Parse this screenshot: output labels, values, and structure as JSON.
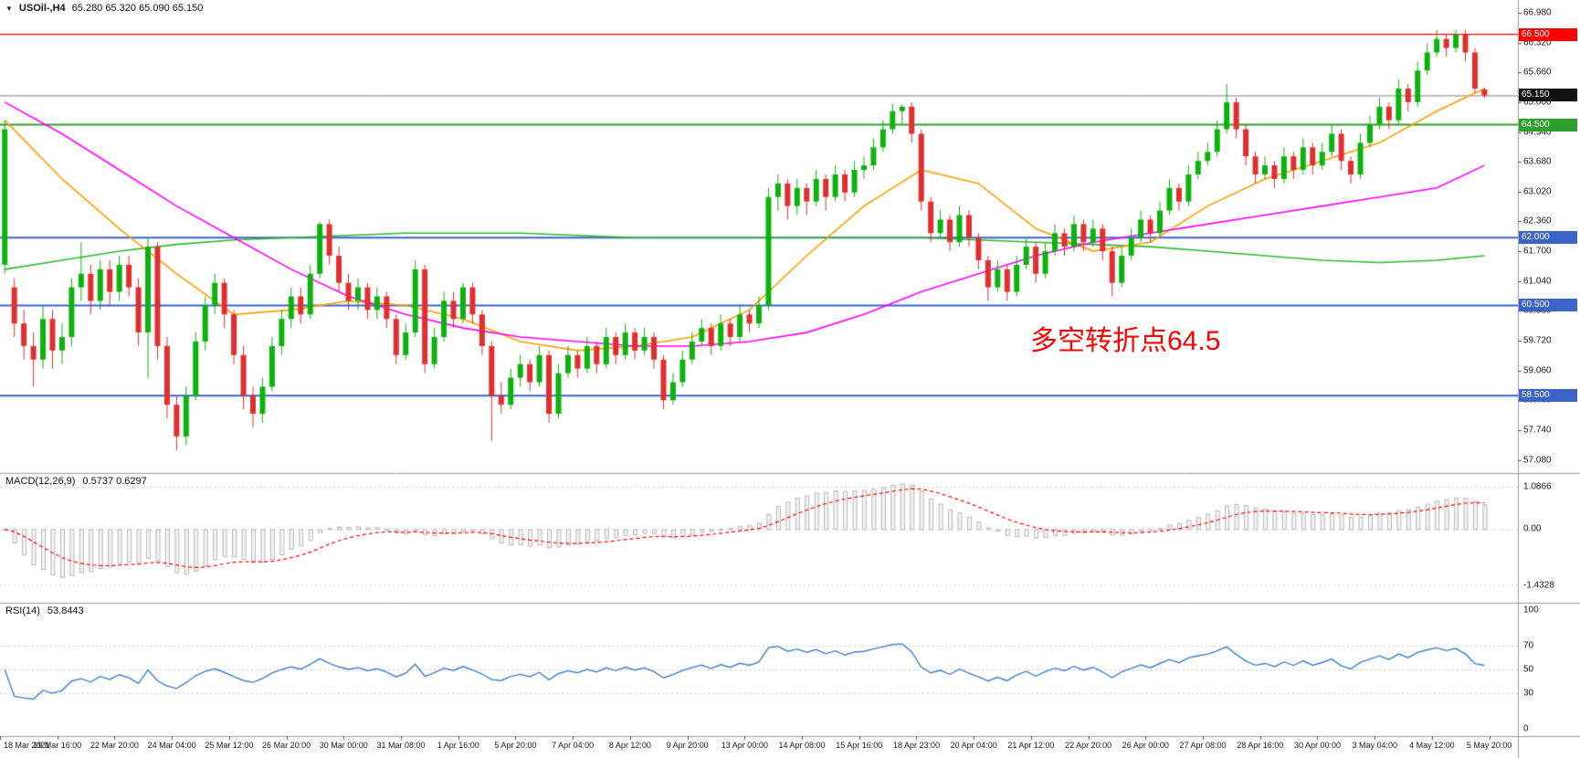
{
  "header": {
    "dropdown_glyph": "▼",
    "symbol_period": "USOil-,H4",
    "ohlc": "65.280 65.320 65.090 65.150"
  },
  "annotation": {
    "text": "多空转折点64.5",
    "color": "#ff0000"
  },
  "price_scale": {
    "labels": [
      "66.980",
      "66.320",
      "65.660",
      "65.000",
      "64.340",
      "63.680",
      "63.020",
      "62.360",
      "61.700",
      "61.040",
      "60.380",
      "59.720",
      "59.060",
      "58.400",
      "57.740",
      "57.080"
    ]
  },
  "levels": [
    {
      "label": "66.500",
      "price": 66.5,
      "color": "#ff0000",
      "width": 1.4
    },
    {
      "label": "64.500",
      "price": 64.5,
      "color": "#2e9e2e",
      "width": 2
    },
    {
      "label": "62.000",
      "price": 62.0,
      "color": "#3c64c8",
      "width": 2
    },
    {
      "label": "60.500",
      "price": 60.5,
      "color": "#3c64c8",
      "width": 2
    },
    {
      "label": "58.500",
      "price": 58.5,
      "color": "#3c64c8",
      "width": 2
    }
  ],
  "current_price": {
    "label": "65.150",
    "value": 65.15,
    "line_color": "#808080",
    "badge_color": "#111111"
  },
  "indicators": {
    "macd": {
      "label": "MACD(12,26,9)",
      "values": "0.5737 0.6297",
      "scale": [
        "1.0866",
        "0.00",
        "-1.4328"
      ],
      "scale_values": [
        1.0866,
        0,
        -1.4328
      ],
      "histogram_fill": "#f4f4f4",
      "histogram_stroke": "#b8b8b8",
      "signal_color": "#ff0000"
    },
    "rsi": {
      "label": "RSI(14)",
      "value": "53.8443",
      "scale": [
        "100",
        "70",
        "50",
        "30",
        "0"
      ],
      "scale_values": [
        100,
        70,
        50,
        30,
        0
      ],
      "levels": [
        30,
        50,
        70
      ],
      "line_color": "#3f7fca"
    }
  },
  "time_axis": [
    "18 Mar 2021",
    "19 Mar 16:00",
    "22 Mar 20:00",
    "24 Mar 04:00",
    "25 Mar 12:00",
    "26 Mar 20:00",
    "30 Mar 00:00",
    "31 Mar 08:00",
    "1 Apr 16:00",
    "5 Apr 20:00",
    "7 Apr 04:00",
    "8 Apr 12:00",
    "9 Apr 20:00",
    "13 Apr 00:00",
    "14 Apr 08:00",
    "15 Apr 16:00",
    "18 Apr 23:00",
    "20 Apr 04:00",
    "21 Apr 12:00",
    "22 Apr 20:00",
    "26 Apr 00:00",
    "27 Apr 08:00",
    "28 Apr 16:00",
    "30 Apr 00:00",
    "3 May 04:00",
    "4 May 12:00",
    "5 May 20:00"
  ],
  "chart_data": {
    "type": "candlestick",
    "symbol": "USOil-",
    "timeframe": "H4",
    "title": "USOil-,H4 65.280 65.320 65.090 65.150",
    "price_range": [
      56.95,
      67.1
    ],
    "x_tick_step": 6,
    "bull_color": "#0db30d",
    "bear_color": "#e12f2f",
    "ohlc": [
      [
        61.4,
        64.6,
        61.2,
        64.4
      ],
      [
        60.9,
        61.1,
        59.8,
        60.1
      ],
      [
        60.1,
        60.4,
        59.3,
        59.6
      ],
      [
        59.6,
        59.9,
        58.7,
        59.3
      ],
      [
        59.3,
        60.5,
        59.1,
        60.2
      ],
      [
        60.2,
        60.4,
        59.1,
        59.5
      ],
      [
        59.5,
        60.1,
        59.2,
        59.8
      ],
      [
        59.8,
        61.1,
        59.6,
        60.9
      ],
      [
        60.9,
        61.9,
        60.6,
        61.2
      ],
      [
        61.2,
        61.4,
        60.3,
        60.6
      ],
      [
        60.6,
        61.5,
        60.4,
        61.3
      ],
      [
        61.3,
        61.5,
        60.5,
        60.8
      ],
      [
        60.8,
        61.6,
        60.6,
        61.4
      ],
      [
        61.4,
        61.6,
        60.7,
        60.9
      ],
      [
        60.9,
        61.1,
        59.6,
        59.9
      ],
      [
        59.9,
        62.0,
        58.9,
        61.8
      ],
      [
        61.8,
        61.9,
        59.3,
        59.6
      ],
      [
        59.6,
        59.8,
        58.0,
        58.3
      ],
      [
        58.3,
        58.5,
        57.3,
        57.6
      ],
      [
        57.6,
        58.7,
        57.4,
        58.5
      ],
      [
        58.5,
        59.9,
        58.4,
        59.7
      ],
      [
        59.7,
        60.7,
        59.5,
        60.5
      ],
      [
        60.5,
        61.2,
        60.3,
        61.0
      ],
      [
        61.0,
        61.1,
        60.0,
        60.3
      ],
      [
        60.3,
        60.4,
        59.2,
        59.4
      ],
      [
        59.4,
        59.6,
        58.2,
        58.5
      ],
      [
        58.5,
        58.7,
        57.8,
        58.1
      ],
      [
        58.1,
        58.9,
        57.9,
        58.7
      ],
      [
        58.7,
        59.8,
        58.6,
        59.6
      ],
      [
        59.6,
        60.4,
        59.4,
        60.2
      ],
      [
        60.2,
        60.9,
        60.0,
        60.7
      ],
      [
        60.7,
        60.9,
        60.1,
        60.3
      ],
      [
        60.3,
        61.4,
        60.2,
        61.2
      ],
      [
        61.2,
        62.35,
        61.1,
        62.3
      ],
      [
        62.3,
        62.4,
        61.4,
        61.6
      ],
      [
        61.6,
        61.8,
        60.8,
        61.0
      ],
      [
        61.0,
        61.2,
        60.4,
        60.6
      ],
      [
        60.6,
        61.1,
        60.4,
        60.9
      ],
      [
        60.9,
        61.0,
        60.2,
        60.4
      ],
      [
        60.4,
        60.9,
        60.2,
        60.7
      ],
      [
        60.7,
        60.8,
        60.0,
        60.2
      ],
      [
        60.2,
        60.3,
        59.2,
        59.4
      ],
      [
        59.4,
        60.1,
        59.3,
        59.9
      ],
      [
        59.9,
        61.5,
        59.8,
        61.3
      ],
      [
        61.3,
        61.4,
        59.0,
        59.2
      ],
      [
        59.2,
        60.0,
        59.1,
        59.8
      ],
      [
        59.8,
        60.8,
        59.7,
        60.6
      ],
      [
        60.6,
        60.8,
        60.0,
        60.2
      ],
      [
        60.2,
        61.0,
        60.1,
        60.9
      ],
      [
        60.9,
        61.0,
        60.1,
        60.3
      ],
      [
        60.3,
        60.4,
        59.4,
        59.6
      ],
      [
        59.6,
        59.7,
        57.5,
        58.5
      ],
      [
        58.5,
        58.8,
        58.1,
        58.3
      ],
      [
        58.3,
        59.1,
        58.2,
        58.9
      ],
      [
        58.9,
        59.4,
        58.7,
        59.2
      ],
      [
        59.2,
        59.3,
        58.6,
        58.8
      ],
      [
        58.8,
        59.6,
        58.7,
        59.4
      ],
      [
        59.4,
        59.5,
        57.9,
        58.1
      ],
      [
        58.1,
        59.2,
        58.0,
        59.0
      ],
      [
        59.0,
        59.6,
        58.9,
        59.4
      ],
      [
        59.4,
        59.5,
        58.9,
        59.1
      ],
      [
        59.1,
        59.8,
        59.0,
        59.6
      ],
      [
        59.6,
        59.7,
        59.0,
        59.2
      ],
      [
        59.2,
        60.0,
        59.1,
        59.8
      ],
      [
        59.8,
        59.9,
        59.2,
        59.4
      ],
      [
        59.4,
        60.1,
        59.3,
        59.9
      ],
      [
        59.9,
        60.0,
        59.3,
        59.5
      ],
      [
        59.5,
        60.0,
        59.4,
        59.8
      ],
      [
        59.8,
        59.9,
        59.1,
        59.3
      ],
      [
        59.3,
        59.4,
        58.2,
        58.4
      ],
      [
        58.4,
        59.0,
        58.3,
        58.8
      ],
      [
        58.8,
        59.5,
        58.7,
        59.3
      ],
      [
        59.3,
        59.9,
        59.2,
        59.7
      ],
      [
        59.7,
        60.2,
        59.6,
        60.0
      ],
      [
        60.0,
        60.1,
        59.4,
        59.6
      ],
      [
        59.6,
        60.3,
        59.5,
        60.1
      ],
      [
        60.1,
        60.2,
        59.6,
        59.8
      ],
      [
        59.8,
        60.5,
        59.7,
        60.3
      ],
      [
        60.3,
        60.4,
        59.9,
        60.1
      ],
      [
        60.1,
        60.7,
        60.0,
        60.5
      ],
      [
        60.5,
        63.1,
        60.4,
        62.9
      ],
      [
        62.9,
        63.4,
        62.6,
        63.2
      ],
      [
        63.2,
        63.3,
        62.4,
        62.7
      ],
      [
        62.7,
        63.3,
        62.5,
        63.1
      ],
      [
        63.1,
        63.2,
        62.5,
        62.8
      ],
      [
        62.8,
        63.5,
        62.7,
        63.3
      ],
      [
        63.3,
        63.4,
        62.6,
        62.9
      ],
      [
        62.9,
        63.6,
        62.8,
        63.4
      ],
      [
        63.4,
        63.5,
        62.8,
        63.0
      ],
      [
        63.0,
        63.7,
        62.9,
        63.5
      ],
      [
        63.5,
        63.8,
        63.3,
        63.6
      ],
      [
        63.6,
        64.2,
        63.5,
        64.0
      ],
      [
        64.0,
        64.6,
        63.9,
        64.4
      ],
      [
        64.4,
        64.97,
        64.3,
        64.8
      ],
      [
        64.8,
        64.95,
        64.5,
        64.9
      ],
      [
        64.9,
        65.0,
        64.1,
        64.3
      ],
      [
        64.3,
        64.4,
        62.6,
        62.8
      ],
      [
        62.8,
        62.9,
        61.9,
        62.1
      ],
      [
        62.1,
        62.6,
        62.0,
        62.4
      ],
      [
        62.4,
        62.5,
        61.7,
        61.9
      ],
      [
        61.9,
        62.7,
        61.8,
        62.5
      ],
      [
        62.5,
        62.6,
        61.8,
        62.0
      ],
      [
        62.0,
        62.1,
        61.3,
        61.5
      ],
      [
        61.5,
        61.6,
        60.6,
        60.9
      ],
      [
        60.9,
        61.5,
        60.8,
        61.3
      ],
      [
        61.3,
        61.4,
        60.6,
        60.8
      ],
      [
        60.8,
        61.6,
        60.7,
        61.4
      ],
      [
        61.4,
        62.0,
        61.3,
        61.8
      ],
      [
        61.8,
        61.9,
        61.0,
        61.2
      ],
      [
        61.2,
        61.9,
        61.1,
        61.7
      ],
      [
        61.7,
        62.3,
        61.6,
        62.1
      ],
      [
        62.1,
        62.2,
        61.6,
        61.8
      ],
      [
        61.8,
        62.5,
        61.7,
        62.3
      ],
      [
        62.3,
        62.4,
        61.7,
        61.9
      ],
      [
        61.9,
        62.4,
        61.8,
        62.2
      ],
      [
        62.2,
        62.3,
        61.5,
        61.7
      ],
      [
        61.7,
        61.8,
        60.7,
        61.0
      ],
      [
        61.0,
        61.8,
        60.9,
        61.6
      ],
      [
        61.6,
        62.2,
        61.5,
        62.0
      ],
      [
        62.0,
        62.6,
        61.9,
        62.4
      ],
      [
        62.4,
        62.5,
        61.9,
        62.1
      ],
      [
        62.1,
        62.8,
        62.0,
        62.6
      ],
      [
        62.6,
        63.3,
        62.5,
        63.1
      ],
      [
        63.1,
        63.2,
        62.6,
        62.8
      ],
      [
        62.8,
        63.6,
        62.7,
        63.4
      ],
      [
        63.4,
        63.9,
        63.3,
        63.7
      ],
      [
        63.7,
        64.1,
        63.6,
        63.9
      ],
      [
        63.9,
        64.6,
        63.8,
        64.4
      ],
      [
        64.4,
        65.4,
        64.3,
        65.0
      ],
      [
        65.0,
        65.1,
        64.2,
        64.4
      ],
      [
        64.4,
        64.5,
        63.6,
        63.8
      ],
      [
        63.8,
        63.9,
        63.2,
        63.4
      ],
      [
        63.4,
        63.8,
        63.3,
        63.6
      ],
      [
        63.6,
        63.7,
        63.1,
        63.3
      ],
      [
        63.3,
        64.0,
        63.2,
        63.8
      ],
      [
        63.8,
        63.9,
        63.3,
        63.5
      ],
      [
        63.5,
        64.2,
        63.4,
        64.0
      ],
      [
        64.0,
        64.1,
        63.4,
        63.6
      ],
      [
        63.6,
        64.1,
        63.5,
        63.9
      ],
      [
        63.9,
        64.5,
        63.8,
        64.3
      ],
      [
        64.3,
        64.4,
        63.5,
        63.7
      ],
      [
        63.7,
        63.8,
        63.2,
        63.4
      ],
      [
        63.4,
        64.3,
        63.3,
        64.1
      ],
      [
        64.1,
        64.7,
        64.0,
        64.5
      ],
      [
        64.5,
        65.1,
        64.4,
        64.9
      ],
      [
        64.9,
        65.0,
        64.4,
        64.6
      ],
      [
        64.6,
        65.5,
        64.5,
        65.3
      ],
      [
        65.3,
        65.4,
        64.8,
        65.0
      ],
      [
        65.0,
        65.9,
        64.9,
        65.7
      ],
      [
        65.7,
        66.3,
        65.6,
        66.1
      ],
      [
        66.1,
        66.6,
        66.0,
        66.4
      ],
      [
        66.4,
        66.5,
        66.0,
        66.2
      ],
      [
        66.2,
        66.6,
        66.1,
        66.5
      ],
      [
        66.5,
        66.6,
        65.9,
        66.1
      ],
      [
        66.1,
        66.2,
        65.2,
        65.3
      ],
      [
        65.28,
        65.32,
        65.09,
        65.15
      ]
    ],
    "overlays": [
      {
        "name": "ma-slow-green",
        "color": "#2db82d",
        "values": [
          61.3,
          61.5,
          61.7,
          61.85,
          61.95,
          62.0,
          62.05,
          62.1,
          62.1,
          62.1,
          62.05,
          62.0,
          62.0,
          62.0,
          62.0,
          62.0,
          62.0,
          61.95,
          61.9,
          61.85,
          61.8,
          61.7,
          61.6,
          61.5,
          61.45,
          61.5,
          61.6
        ]
      },
      {
        "name": "ma-mid-orange",
        "color": "#ff9d00",
        "values": [
          64.6,
          63.3,
          62.2,
          61.2,
          60.3,
          60.4,
          60.6,
          60.5,
          60.2,
          59.7,
          59.5,
          59.6,
          59.8,
          60.4,
          61.6,
          62.7,
          63.5,
          63.2,
          62.2,
          61.7,
          61.9,
          62.7,
          63.3,
          63.7,
          64.1,
          64.8,
          65.3
        ]
      },
      {
        "name": "ma-long-magenta",
        "color": "#ff00ff",
        "values": [
          65.0,
          64.3,
          63.5,
          62.7,
          62.0,
          61.3,
          60.7,
          60.3,
          60.0,
          59.8,
          59.7,
          59.6,
          59.6,
          59.7,
          59.9,
          60.3,
          60.8,
          61.2,
          61.6,
          61.9,
          62.1,
          62.3,
          62.5,
          62.7,
          62.9,
          63.1,
          63.6
        ]
      }
    ],
    "macd_params": [
      12,
      26,
      9
    ],
    "rsi_params": [
      14
    ]
  }
}
